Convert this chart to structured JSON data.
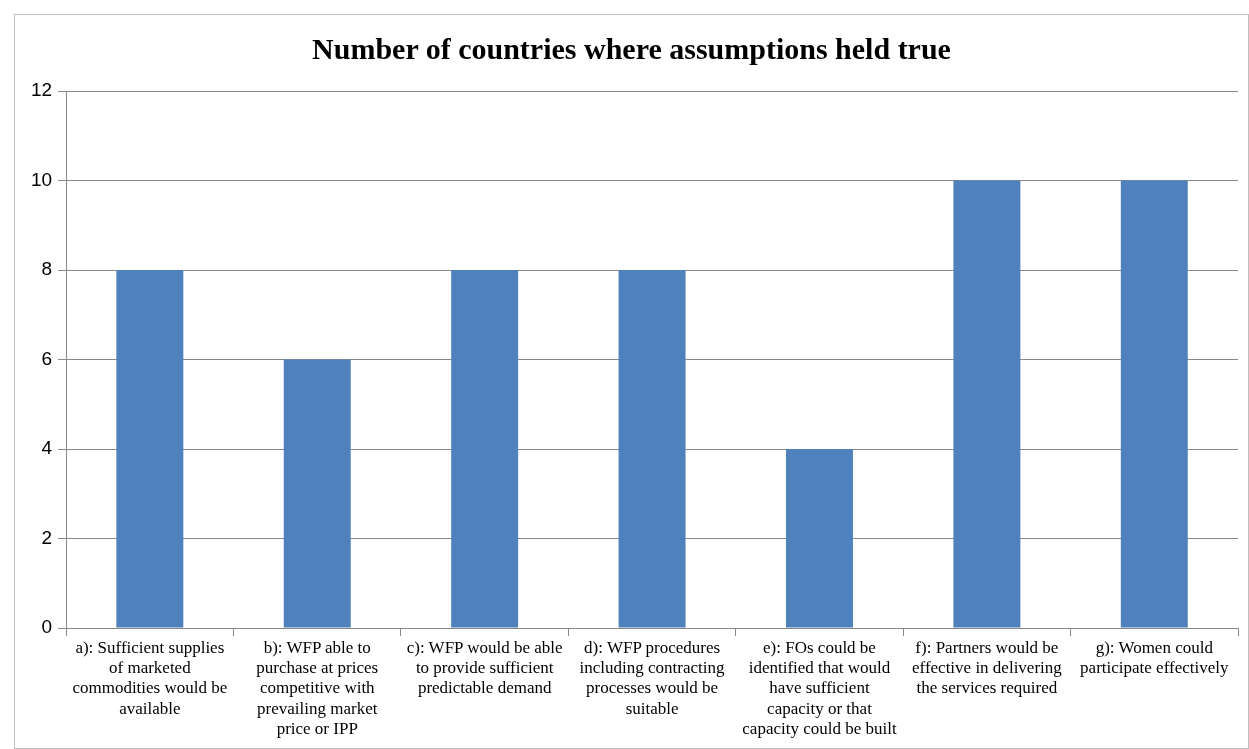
{
  "chart_data": {
    "type": "bar",
    "title": "Number of countries where assumptions held true",
    "categories": [
      "a): Sufficient supplies of marketed commodities would be available",
      "b): WFP able to purchase at prices competitive with prevailing market price or IPP",
      "c): WFP would be able to provide sufficient predictable demand",
      "d): WFP procedures including contracting processes would be suitable",
      "e): FOs could be identified that would have sufficient capacity or that capacity could be built",
      "f): Partners would be effective in delivering the services required",
      "g): Women could participate effectively"
    ],
    "values": [
      8,
      6,
      8,
      8,
      4,
      10,
      10
    ],
    "color": "#4f81bd",
    "ylim": [
      0,
      12
    ],
    "yticks": [
      0,
      2,
      4,
      6,
      8,
      10,
      12
    ],
    "grid": "y",
    "legend": false
  }
}
